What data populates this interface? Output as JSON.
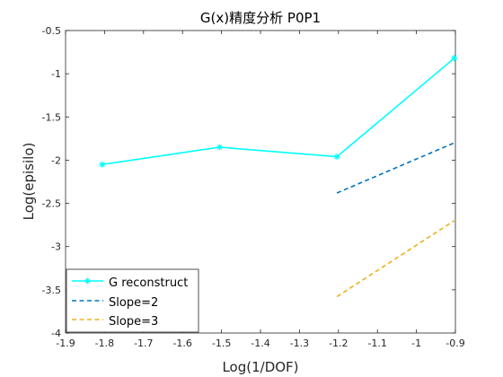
{
  "chart_data": {
    "type": "line",
    "title": "G(x)精度分析 P0P1",
    "xlabel": "Log(1/DOF)",
    "ylabel": "Log(episilo)",
    "xlim": [
      -1.9,
      -0.9
    ],
    "ylim": [
      -4,
      -0.5
    ],
    "xticks": [
      "-1.9",
      "-1.8",
      "-1.7",
      "-1.6",
      "-1.5",
      "-1.4",
      "-1.3",
      "-1.2",
      "-1.1",
      "-1",
      "-0.9"
    ],
    "yticks": [
      "-4",
      "-3.5",
      "-3",
      "-2.5",
      "-2",
      "-1.5",
      "-1",
      "-0.5"
    ],
    "grid": false,
    "legend_position": "bottom-left",
    "series": [
      {
        "name": "G reconstruct",
        "color": "#00FFFF",
        "style": "solid",
        "marker": "asterisk",
        "x": [
          -1.806,
          -1.505,
          -1.204,
          -0.903
        ],
        "y": [
          -2.05,
          -1.85,
          -1.96,
          -0.82
        ]
      },
      {
        "name": "Slope=2",
        "color": "#0072BD",
        "style": "dashed",
        "marker": "none",
        "x": [
          -1.204,
          -0.903
        ],
        "y": [
          -2.38,
          -1.8
        ]
      },
      {
        "name": "Slope=3",
        "color": "#EDB120",
        "style": "dashed",
        "marker": "none",
        "x": [
          -1.204,
          -0.903
        ],
        "y": [
          -3.58,
          -2.7
        ]
      }
    ]
  }
}
